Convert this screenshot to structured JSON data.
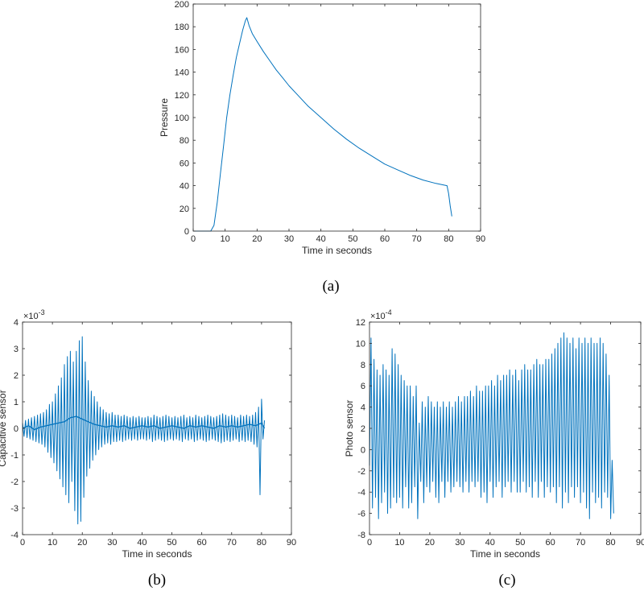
{
  "colors": {
    "line": "#0072BD",
    "axis": "#262626",
    "background": "#ffffff"
  },
  "chart_data": [
    {
      "panel": "(a)",
      "type": "line",
      "title": "",
      "xlabel": "Time in seconds",
      "ylabel": "Pressure",
      "exponent_label": "",
      "xlim": [
        0,
        90
      ],
      "ylim": [
        0,
        200
      ],
      "xticks": [
        0,
        10,
        20,
        30,
        40,
        50,
        60,
        70,
        80,
        90
      ],
      "yticks": [
        0,
        20,
        40,
        60,
        80,
        100,
        120,
        140,
        160,
        180,
        200
      ],
      "grid": false,
      "series": [
        {
          "x": [
            0,
            5.5,
            6.5,
            7.5,
            8.5,
            9.5,
            10.5,
            11.5,
            12.5,
            13.5,
            14.5,
            15.5,
            16.3,
            16.8,
            17.5,
            18.5,
            20,
            22,
            24,
            26,
            28,
            30,
            33,
            36,
            40,
            44,
            48,
            52,
            56,
            60,
            64,
            68,
            72,
            76,
            79.5,
            80,
            80.5,
            81
          ],
          "y": [
            0,
            0,
            5,
            25,
            50,
            75,
            100,
            120,
            137,
            153,
            165,
            177,
            185,
            188,
            181,
            174,
            167,
            158,
            150,
            142,
            135,
            128,
            119,
            110,
            100,
            90,
            81,
            73,
            66,
            59,
            54,
            49,
            45,
            42,
            40,
            33,
            22,
            13
          ]
        }
      ]
    },
    {
      "panel": "(b)",
      "type": "line",
      "title": "",
      "xlabel": "Time in seconds",
      "ylabel": "Capacitive sensor",
      "exponent_label": "×10",
      "exponent_power": "-3",
      "xlim": [
        0,
        90
      ],
      "ylim": [
        -4,
        4
      ],
      "xticks": [
        0,
        10,
        20,
        30,
        40,
        50,
        60,
        70,
        80,
        90
      ],
      "yticks": [
        -4,
        -3,
        -2,
        -1,
        0,
        1,
        2,
        3,
        4
      ],
      "grid": false,
      "series": [
        {
          "x": [
            0,
            0.5,
            1,
            1.5,
            2,
            2.5,
            3,
            3.5,
            4,
            4.5,
            5,
            5.5,
            6,
            6.5,
            7,
            7.5,
            8,
            8.5,
            9,
            9.5,
            10,
            10.5,
            11,
            11.5,
            12,
            12.5,
            13,
            13.5,
            14,
            14.5,
            15,
            15.5,
            16,
            16.5,
            17,
            17.5,
            18,
            18.5,
            19,
            19.5,
            20,
            20.5,
            21,
            21.5,
            22,
            22.5,
            23,
            23.5,
            24,
            24.5,
            25,
            25.5,
            26,
            26.5,
            27,
            27.5,
            28,
            28.5,
            29,
            29.5,
            30,
            30.5,
            31,
            31.5,
            32,
            32.5,
            33,
            33.5,
            34,
            34.5,
            35,
            35.5,
            36,
            36.5,
            37,
            37.5,
            38,
            38.5,
            39,
            39.5,
            40,
            40.5,
            41,
            41.5,
            42,
            42.5,
            43,
            43.5,
            44,
            44.5,
            45,
            45.5,
            46,
            46.5,
            47,
            47.5,
            48,
            48.5,
            49,
            49.5,
            50,
            50.5,
            51,
            51.5,
            52,
            52.5,
            53,
            53.5,
            54,
            54.5,
            55,
            55.5,
            56,
            56.5,
            57,
            57.5,
            58,
            58.5,
            59,
            59.5,
            60,
            60.5,
            61,
            61.5,
            62,
            62.5,
            63,
            63.5,
            64,
            64.5,
            65,
            65.5,
            66,
            66.5,
            67,
            67.5,
            68,
            68.5,
            69,
            69.5,
            70,
            70.5,
            71,
            71.5,
            72,
            72.5,
            73,
            73.5,
            74,
            74.5,
            75,
            75.5,
            76,
            76.5,
            77,
            77.5,
            78,
            78.5,
            79,
            79.5,
            80,
            80.5,
            81
          ],
          "y": [
            0.2,
            -0.3,
            0.3,
            -0.35,
            0.35,
            -0.4,
            0.4,
            -0.45,
            0.45,
            -0.5,
            0.5,
            -0.55,
            0.55,
            -0.6,
            0.6,
            -0.7,
            0.7,
            -0.9,
            0.9,
            -1.1,
            1.0,
            -1.3,
            1.3,
            -1.6,
            1.6,
            -1.9,
            1.9,
            -2.2,
            2.4,
            -2.5,
            2.7,
            -2.8,
            2.9,
            -2.0,
            2.5,
            -3.1,
            2.9,
            -3.6,
            3.3,
            -3.5,
            3.45,
            -2.6,
            2.5,
            -1.8,
            1.8,
            -1.5,
            1.4,
            -1.2,
            1.2,
            -1.0,
            1.0,
            -0.8,
            0.8,
            -0.7,
            0.7,
            -0.6,
            0.6,
            -0.55,
            0.55,
            -0.6,
            0.6,
            -0.5,
            0.5,
            -0.5,
            0.5,
            -0.45,
            0.45,
            -0.5,
            0.5,
            -0.45,
            0.45,
            -0.4,
            0.4,
            -0.45,
            0.45,
            -0.4,
            0.4,
            -0.45,
            0.45,
            -0.4,
            0.4,
            -0.4,
            0.4,
            -0.45,
            0.45,
            -0.4,
            0.4,
            -0.5,
            0.5,
            -0.45,
            0.45,
            -0.4,
            0.4,
            -0.45,
            0.45,
            -0.5,
            0.5,
            -0.45,
            0.45,
            -0.4,
            0.4,
            -0.45,
            0.45,
            -0.4,
            0.4,
            -0.45,
            0.45,
            -0.5,
            0.5,
            -0.4,
            0.4,
            -0.45,
            0.45,
            -0.4,
            0.4,
            -0.5,
            0.5,
            -0.45,
            0.45,
            -0.4,
            0.4,
            -0.45,
            0.45,
            -0.5,
            0.5,
            -0.45,
            0.45,
            -0.4,
            0.4,
            -0.45,
            0.45,
            -0.5,
            0.5,
            -0.55,
            0.55,
            -0.5,
            0.5,
            -0.45,
            0.45,
            -0.5,
            0.5,
            -0.45,
            0.45,
            -0.4,
            0.4,
            -0.5,
            0.5,
            -0.45,
            0.45,
            -0.5,
            0.5,
            -0.45,
            0.45,
            -0.5,
            0.5,
            -0.6,
            0.6,
            -0.7,
            0.8,
            -2.5,
            1.1,
            -0.4,
            0.3
          ]
        },
        {
          "x": [
            0,
            2,
            4,
            6,
            8,
            10,
            12,
            14,
            16,
            18,
            20,
            22,
            24,
            26,
            28,
            30,
            32,
            34,
            36,
            38,
            40,
            42,
            44,
            46,
            48,
            50,
            52,
            54,
            56,
            58,
            60,
            62,
            64,
            66,
            68,
            70,
            72,
            74,
            76,
            78,
            80,
            81
          ],
          "y": [
            0.0,
            0.1,
            -0.05,
            0.05,
            0.1,
            0.15,
            0.2,
            0.25,
            0.4,
            0.45,
            0.35,
            0.25,
            0.15,
            0.1,
            0.05,
            0.1,
            0.05,
            0.1,
            0.0,
            0.05,
            0.1,
            0.05,
            0.1,
            0.0,
            0.05,
            0.1,
            0.05,
            0.0,
            0.1,
            0.05,
            0.1,
            0.05,
            0.0,
            0.1,
            0.05,
            0.1,
            0.05,
            0.1,
            0.15,
            0.1,
            0.2,
            0.0
          ]
        }
      ]
    },
    {
      "panel": "(c)",
      "type": "line",
      "title": "",
      "xlabel": "Time in seconds",
      "ylabel": "Photo sensor",
      "exponent_label": "×10",
      "exponent_power": "-4",
      "xlim": [
        0,
        90
      ],
      "ylim": [
        -8,
        12
      ],
      "xticks": [
        0,
        10,
        20,
        30,
        40,
        50,
        60,
        70,
        80,
        90
      ],
      "yticks": [
        -8,
        -6,
        -4,
        -2,
        0,
        2,
        4,
        6,
        8,
        10,
        12
      ],
      "grid": false,
      "series": [
        {
          "x": [
            0,
            0.5,
            1,
            1.5,
            2,
            2.5,
            3,
            3.5,
            4,
            4.5,
            5,
            5.5,
            6,
            6.5,
            7,
            7.5,
            8,
            8.5,
            9,
            9.5,
            10,
            10.5,
            11,
            11.5,
            12,
            12.5,
            13,
            13.5,
            14,
            14.5,
            15,
            15.5,
            16,
            16.5,
            17,
            17.5,
            18,
            18.5,
            19,
            19.5,
            20,
            20.5,
            21,
            21.5,
            22,
            22.5,
            23,
            23.5,
            24,
            24.5,
            25,
            25.5,
            26,
            26.5,
            27,
            27.5,
            28,
            28.5,
            29,
            29.5,
            30,
            30.5,
            31,
            31.5,
            32,
            32.5,
            33,
            33.5,
            34,
            34.5,
            35,
            35.5,
            36,
            36.5,
            37,
            37.5,
            38,
            38.5,
            39,
            39.5,
            40,
            40.5,
            41,
            41.5,
            42,
            42.5,
            43,
            43.5,
            44,
            44.5,
            45,
            45.5,
            46,
            46.5,
            47,
            47.5,
            48,
            48.5,
            49,
            49.5,
            50,
            50.5,
            51,
            51.5,
            52,
            52.5,
            53,
            53.5,
            54,
            54.5,
            55,
            55.5,
            56,
            56.5,
            57,
            57.5,
            58,
            58.5,
            59,
            59.5,
            60,
            60.5,
            61,
            61.5,
            62,
            62.5,
            63,
            63.5,
            64,
            64.5,
            65,
            65.5,
            66,
            66.5,
            67,
            67.5,
            68,
            68.5,
            69,
            69.5,
            70,
            70.5,
            71,
            71.5,
            72,
            72.5,
            73,
            73.5,
            74,
            74.5,
            75,
            75.5,
            76,
            76.5,
            77,
            77.5,
            78,
            78.5,
            79,
            79.5,
            80,
            80.5,
            81
          ],
          "y": [
            -1.5,
            10.5,
            -5.5,
            8.5,
            -4.5,
            7.5,
            -6.5,
            7.0,
            -5.0,
            8.0,
            -4.0,
            7.5,
            -6.0,
            7.0,
            -5.5,
            9.5,
            -4.5,
            9.0,
            -5.0,
            8.0,
            -4.5,
            7.0,
            -5.5,
            6.5,
            -3.5,
            6.0,
            -5.5,
            6.0,
            -5.0,
            5.0,
            -3.5,
            6.0,
            -6.5,
            2.5,
            -3.0,
            4.5,
            -5.0,
            4.0,
            -3.5,
            5.0,
            -4.0,
            4.5,
            -3.0,
            4.0,
            -4.5,
            4.5,
            -5.0,
            4.0,
            -3.0,
            4.5,
            -4.5,
            4.0,
            -3.0,
            4.5,
            -4.0,
            4.0,
            -3.5,
            4.5,
            -3.0,
            5.0,
            -3.5,
            4.5,
            -4.0,
            5.0,
            -3.0,
            5.0,
            -4.0,
            5.5,
            -3.0,
            5.0,
            -3.5,
            6.0,
            -3.0,
            5.5,
            -4.5,
            5.5,
            -4.0,
            6.0,
            -5.0,
            6.0,
            -3.0,
            6.5,
            -4.5,
            6.0,
            -3.5,
            7.0,
            -3.0,
            6.5,
            -4.5,
            7.0,
            -3.5,
            7.0,
            -3.0,
            7.5,
            -4.0,
            7.0,
            -3.0,
            7.5,
            -4.0,
            6.5,
            -4.0,
            7.5,
            -3.0,
            8.0,
            -4.0,
            7.5,
            -3.5,
            7.5,
            -4.5,
            8.0,
            -3.0,
            8.5,
            -4.5,
            8.0,
            -3.0,
            8.0,
            -4.5,
            8.5,
            -3.5,
            8.5,
            -4.0,
            9.0,
            -3.5,
            9.5,
            -5.0,
            10.0,
            -3.5,
            10.5,
            -5.5,
            11.0,
            -4.0,
            10.5,
            -5.0,
            10.0,
            -3.5,
            10.5,
            -4.5,
            9.5,
            -3.5,
            10.5,
            -5.0,
            10.0,
            -4.0,
            10.5,
            -5.5,
            10.0,
            -6.5,
            10.5,
            -4.0,
            10.0,
            -5.0,
            10.0,
            -4.5,
            10.5,
            -5.5,
            10.0,
            -4.0,
            9.0,
            -4.5,
            7.0,
            -6.5,
            -1.0,
            -6.0
          ]
        }
      ]
    }
  ],
  "captions": [
    "(a)",
    "(b)",
    "(c)"
  ]
}
